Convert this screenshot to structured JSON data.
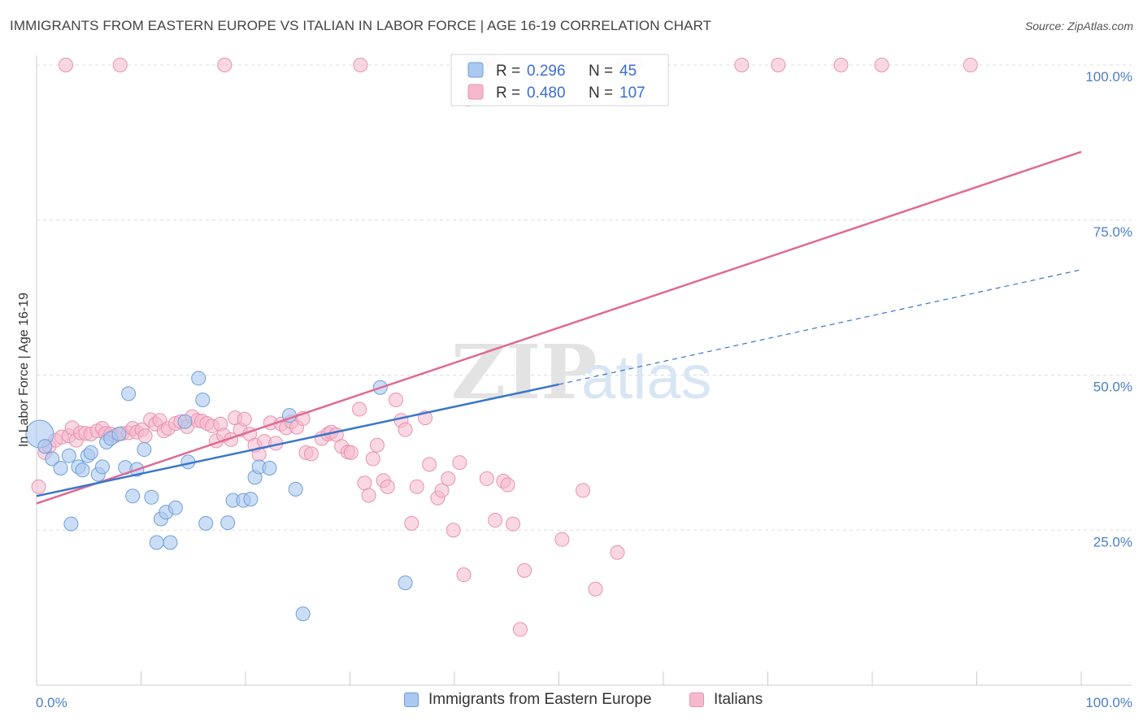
{
  "title": "IMMIGRANTS FROM EASTERN EUROPE VS ITALIAN IN LABOR FORCE | AGE 16-19 CORRELATION CHART",
  "source": "Source: ZipAtlas.com",
  "watermark": {
    "zip": "ZIP",
    "atlas": "atlas"
  },
  "colors": {
    "blue_fill": "#aac8f0",
    "blue_stroke": "#6f9fd8",
    "blue_line": "#3a76cc",
    "pink_fill": "#f6b8cc",
    "pink_stroke": "#e693ae",
    "pink_line": "#e06a93",
    "tick_text": "#4a7fc8"
  },
  "legend": {
    "rows": [
      {
        "r_label": "R =",
        "r_value": "0.296",
        "n_label": "N =",
        "n_value": "45"
      },
      {
        "r_label": "R =",
        "r_value": "0.480",
        "n_label": "N =",
        "n_value": "107"
      }
    ]
  },
  "bottom_legend": [
    "Immigrants from Eastern Europe",
    "Italians"
  ],
  "chart_data": {
    "type": "scatter",
    "xlabel": "",
    "ylabel": "In Labor Force | Age 16-19",
    "xlim": [
      0,
      100
    ],
    "ylim": [
      0,
      100
    ],
    "x_tick_labels": [
      "0.0%",
      "100.0%"
    ],
    "y_ticks": [
      {
        "value": 25,
        "label": "25.0%"
      },
      {
        "value": 50,
        "label": "50.0%"
      },
      {
        "value": 75,
        "label": "75.0%"
      },
      {
        "value": 100,
        "label": "100.0%"
      }
    ],
    "grid": true,
    "legend_position": "top-center",
    "series": [
      {
        "name": "Immigrants from Eastern Europe",
        "color": "blue",
        "trend": {
          "x0": 0,
          "y0": 30.5,
          "x1": 50,
          "y1": 48.5,
          "dashed_to_x": 100,
          "dashed_to_y": 67
        },
        "points": [
          [
            0.3,
            40.5
          ],
          [
            0.8,
            38.5
          ],
          [
            1.5,
            36.5
          ],
          [
            2.3,
            35
          ],
          [
            3.1,
            37
          ],
          [
            3.3,
            26
          ],
          [
            4,
            35.2
          ],
          [
            4.4,
            34.7
          ],
          [
            4.9,
            37
          ],
          [
            5.2,
            37.5
          ],
          [
            5.9,
            34
          ],
          [
            6.3,
            35.2
          ],
          [
            6.7,
            39.2
          ],
          [
            7.1,
            39.8
          ],
          [
            7.9,
            40.5
          ],
          [
            8.5,
            35.1
          ],
          [
            8.8,
            47
          ],
          [
            9.2,
            30.5
          ],
          [
            9.6,
            34.8
          ],
          [
            10.3,
            38
          ],
          [
            11,
            30.3
          ],
          [
            11.5,
            23
          ],
          [
            11.9,
            26.8
          ],
          [
            12.4,
            27.9
          ],
          [
            12.8,
            23
          ],
          [
            13.3,
            28.6
          ],
          [
            14.2,
            42.5
          ],
          [
            14.5,
            36
          ],
          [
            15.5,
            49.5
          ],
          [
            15.9,
            46
          ],
          [
            16.2,
            26.1
          ],
          [
            18.3,
            26.2
          ],
          [
            18.8,
            29.8
          ],
          [
            19.8,
            29.8
          ],
          [
            20.5,
            30
          ],
          [
            20.9,
            33.5
          ],
          [
            21.3,
            35.2
          ],
          [
            22.3,
            35
          ],
          [
            24.2,
            43.5
          ],
          [
            24.8,
            31.6
          ],
          [
            25.5,
            11.5
          ],
          [
            32.9,
            48
          ],
          [
            35.3,
            16.5
          ],
          [
            41.8,
            100
          ],
          [
            42.5,
            100
          ]
        ]
      },
      {
        "name": "Italians",
        "color": "pink",
        "trend": {
          "x0": 0,
          "y0": 29.3,
          "x1": 100,
          "y1": 86
        },
        "points": [
          [
            0.2,
            32
          ],
          [
            0.8,
            37.5
          ],
          [
            1.2,
            38.5
          ],
          [
            1.8,
            39.5
          ],
          [
            2.4,
            40
          ],
          [
            3.1,
            40.2
          ],
          [
            3.4,
            41.5
          ],
          [
            3.8,
            39.5
          ],
          [
            4.2,
            40.7
          ],
          [
            4.7,
            40.6
          ],
          [
            5.2,
            40.5
          ],
          [
            5.8,
            41
          ],
          [
            6.3,
            41.4
          ],
          [
            6.6,
            40.6
          ],
          [
            7.1,
            40.5
          ],
          [
            7.5,
            40.2
          ],
          [
            8.2,
            40.6
          ],
          [
            8.8,
            40.7
          ],
          [
            9.2,
            41.4
          ],
          [
            9.6,
            40.8
          ],
          [
            10.1,
            41.2
          ],
          [
            10.4,
            40.2
          ],
          [
            10.9,
            42.8
          ],
          [
            11.4,
            42.1
          ],
          [
            11.8,
            42.7
          ],
          [
            12.2,
            41
          ],
          [
            12.6,
            41.4
          ],
          [
            13.3,
            42.2
          ],
          [
            13.8,
            42.5
          ],
          [
            14.4,
            41.7
          ],
          [
            14.9,
            43.3
          ],
          [
            15.4,
            42.7
          ],
          [
            15.8,
            42.6
          ],
          [
            16.3,
            42.2
          ],
          [
            16.8,
            41.8
          ],
          [
            17.2,
            39.4
          ],
          [
            17.6,
            42.1
          ],
          [
            17.9,
            40.3
          ],
          [
            18.6,
            39.6
          ],
          [
            19,
            43.1
          ],
          [
            19.5,
            41.2
          ],
          [
            19.9,
            42.9
          ],
          [
            20.4,
            40.5
          ],
          [
            20.9,
            38.7
          ],
          [
            21.3,
            37.2
          ],
          [
            21.8,
            39.3
          ],
          [
            22.4,
            42.3
          ],
          [
            22.9,
            39
          ],
          [
            23.4,
            42.1
          ],
          [
            23.9,
            41.5
          ],
          [
            24.4,
            42.5
          ],
          [
            24.9,
            41.6
          ],
          [
            25.5,
            43
          ],
          [
            25.8,
            37.5
          ],
          [
            26.3,
            37.3
          ],
          [
            27.3,
            39.8
          ],
          [
            27.9,
            40.5
          ],
          [
            28.2,
            40.8
          ],
          [
            28.7,
            40.4
          ],
          [
            29.2,
            38.5
          ],
          [
            29.8,
            37.6
          ],
          [
            30.1,
            37.5
          ],
          [
            30.9,
            44.5
          ],
          [
            31.4,
            32.6
          ],
          [
            31.8,
            30.6
          ],
          [
            32.2,
            36.5
          ],
          [
            32.6,
            38.7
          ],
          [
            33.2,
            33
          ],
          [
            33.6,
            32
          ],
          [
            34.4,
            46
          ],
          [
            34.9,
            42.7
          ],
          [
            35.3,
            41.2
          ],
          [
            35.9,
            26.1
          ],
          [
            36.4,
            32
          ],
          [
            37.2,
            43.1
          ],
          [
            37.6,
            35.6
          ],
          [
            38.4,
            30.2
          ],
          [
            38.8,
            31.4
          ],
          [
            39.4,
            33.3
          ],
          [
            39.9,
            25
          ],
          [
            40.5,
            35.9
          ],
          [
            40.9,
            17.8
          ],
          [
            41.3,
            94.5
          ],
          [
            42.8,
            100
          ],
          [
            43.1,
            33.3
          ],
          [
            43.9,
            26.6
          ],
          [
            44.7,
            32.9
          ],
          [
            45.1,
            32.3
          ],
          [
            45.6,
            26
          ],
          [
            46.3,
            9
          ],
          [
            46.7,
            18.5
          ],
          [
            50.3,
            23.5
          ],
          [
            52.3,
            31.4
          ],
          [
            53.5,
            15.5
          ],
          [
            55.6,
            21.4
          ],
          [
            56.1,
            100
          ],
          [
            57.3,
            100
          ],
          [
            67.5,
            100
          ],
          [
            71,
            100
          ],
          [
            77,
            100
          ],
          [
            80.9,
            100
          ],
          [
            89.4,
            100
          ],
          [
            44,
            100
          ],
          [
            31,
            100
          ],
          [
            18,
            100
          ],
          [
            8,
            100
          ],
          [
            2.8,
            100
          ]
        ]
      }
    ]
  }
}
